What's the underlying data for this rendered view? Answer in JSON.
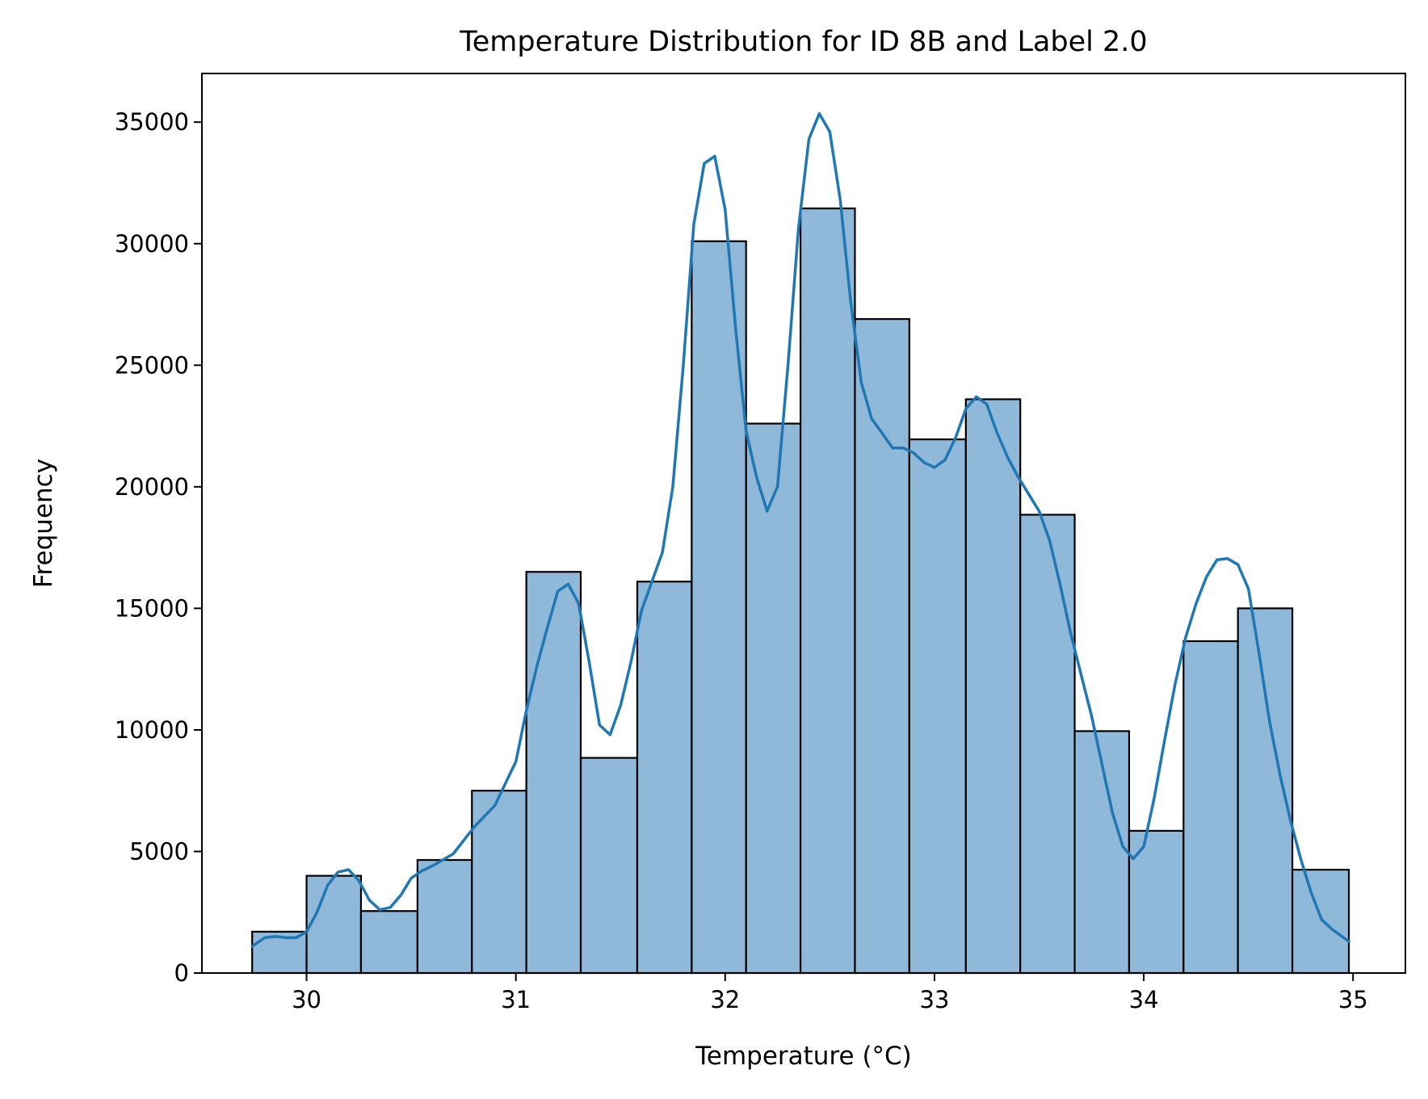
{
  "chart_data": {
    "type": "bar",
    "subtype": "histogram with kde",
    "title": "Temperature Distribution for ID 8B and Label 2.0",
    "xlabel": "Temperature (°C)",
    "ylabel": "Frequency",
    "xlim": [
      29.5,
      35.25
    ],
    "ylim": [
      0,
      37000
    ],
    "xticks": [
      30,
      31,
      32,
      33,
      34,
      35
    ],
    "yticks": [
      0,
      5000,
      10000,
      15000,
      20000,
      25000,
      30000,
      35000
    ],
    "grid": false,
    "legend": "none",
    "bar_color": "#8fb8d9",
    "edge_color": "#000000",
    "line_color": "#1f77b4",
    "bins": [
      {
        "x0": 29.74,
        "x1": 30.0,
        "count": 1700
      },
      {
        "x0": 30.0,
        "x1": 30.26,
        "count": 4000
      },
      {
        "x0": 30.26,
        "x1": 30.53,
        "count": 2550
      },
      {
        "x0": 30.53,
        "x1": 30.79,
        "count": 4650
      },
      {
        "x0": 30.79,
        "x1": 31.05,
        "count": 7500
      },
      {
        "x0": 31.05,
        "x1": 31.31,
        "count": 16500
      },
      {
        "x0": 31.31,
        "x1": 31.58,
        "count": 8850
      },
      {
        "x0": 31.58,
        "x1": 31.84,
        "count": 16100
      },
      {
        "x0": 31.84,
        "x1": 32.1,
        "count": 30100
      },
      {
        "x0": 32.1,
        "x1": 32.36,
        "count": 22600
      },
      {
        "x0": 32.36,
        "x1": 32.62,
        "count": 31450
      },
      {
        "x0": 32.62,
        "x1": 32.88,
        "count": 26900
      },
      {
        "x0": 32.88,
        "x1": 33.15,
        "count": 21950
      },
      {
        "x0": 33.15,
        "x1": 33.41,
        "count": 23600
      },
      {
        "x0": 33.41,
        "x1": 33.67,
        "count": 18850
      },
      {
        "x0": 33.67,
        "x1": 33.93,
        "count": 9950
      },
      {
        "x0": 33.93,
        "x1": 34.19,
        "count": 5850
      },
      {
        "x0": 34.19,
        "x1": 34.45,
        "count": 13650
      },
      {
        "x0": 34.45,
        "x1": 34.71,
        "count": 15000
      },
      {
        "x0": 34.71,
        "x1": 34.98,
        "count": 4250
      }
    ],
    "kde": {
      "x": [
        29.74,
        29.8,
        29.85,
        29.9,
        29.95,
        30.0,
        30.05,
        30.1,
        30.15,
        30.2,
        30.25,
        30.3,
        30.35,
        30.4,
        30.45,
        30.5,
        30.55,
        30.6,
        30.7,
        30.8,
        30.9,
        31.0,
        31.05,
        31.1,
        31.15,
        31.2,
        31.25,
        31.3,
        31.35,
        31.4,
        31.45,
        31.5,
        31.55,
        31.6,
        31.65,
        31.7,
        31.75,
        31.8,
        31.85,
        31.9,
        31.95,
        32.0,
        32.05,
        32.1,
        32.15,
        32.2,
        32.25,
        32.3,
        32.35,
        32.4,
        32.45,
        32.5,
        32.55,
        32.6,
        32.65,
        32.7,
        32.75,
        32.8,
        32.85,
        32.9,
        32.95,
        33.0,
        33.05,
        33.1,
        33.15,
        33.2,
        33.25,
        33.3,
        33.35,
        33.4,
        33.45,
        33.5,
        33.55,
        33.6,
        33.65,
        33.7,
        33.75,
        33.8,
        33.85,
        33.9,
        33.95,
        34.0,
        34.05,
        34.1,
        34.15,
        34.2,
        34.25,
        34.3,
        34.35,
        34.4,
        34.45,
        34.5,
        34.55,
        34.6,
        34.65,
        34.7,
        34.75,
        34.8,
        34.85,
        34.9,
        34.98
      ],
      "y": [
        1100,
        1450,
        1500,
        1450,
        1450,
        1700,
        2500,
        3600,
        4150,
        4250,
        3800,
        3000,
        2600,
        2700,
        3200,
        3900,
        4200,
        4400,
        4900,
        6000,
        6900,
        8700,
        10800,
        12600,
        14200,
        15700,
        16000,
        15200,
        12800,
        10200,
        9800,
        11000,
        12800,
        14900,
        16100,
        17300,
        20000,
        25000,
        30800,
        33300,
        33600,
        31400,
        26500,
        22300,
        20400,
        19000,
        20000,
        25000,
        30600,
        34300,
        35350,
        34600,
        31800,
        27600,
        24300,
        22800,
        22200,
        21600,
        21600,
        21400,
        21000,
        20800,
        21100,
        22000,
        23200,
        23700,
        23400,
        22200,
        21200,
        20400,
        19700,
        19000,
        17800,
        16000,
        14000,
        12300,
        10600,
        8600,
        6600,
        5200,
        4700,
        5200,
        7200,
        9600,
        11900,
        13800,
        15200,
        16300,
        17000,
        17050,
        16800,
        15800,
        13200,
        10400,
        8200,
        6300,
        4700,
        3300,
        2200,
        1800,
        1300
      ]
    }
  }
}
